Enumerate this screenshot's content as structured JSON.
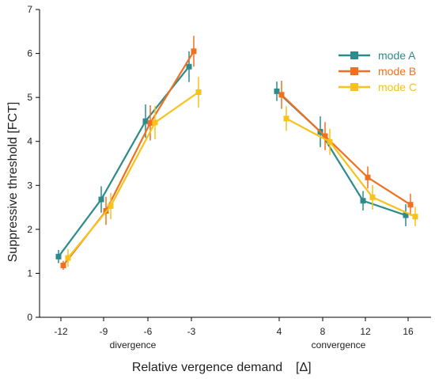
{
  "chart_data": {
    "type": "line",
    "ylabel": "Suppressive threshold [FCT]",
    "xlabel": "Relative vergence demand",
    "xlabel_unit": "[Δ]",
    "ylim": [
      0,
      7
    ],
    "yticks": [
      0,
      1,
      2,
      3,
      4,
      5,
      6,
      7
    ],
    "groups": [
      {
        "name": "divergence",
        "categories": [
          "-12",
          "-9",
          "-6",
          "-3"
        ]
      },
      {
        "name": "convergence",
        "categories": [
          "4",
          "8",
          "12",
          "16"
        ]
      }
    ],
    "legend_position": "top-right",
    "series": [
      {
        "name": "mode A",
        "color": "#2e8b8b",
        "values": [
          1.38,
          2.68,
          4.46,
          5.7,
          5.14,
          4.22,
          2.65,
          2.32
        ],
        "errors": [
          0.15,
          0.3,
          0.38,
          0.35,
          0.22,
          0.35,
          0.22,
          0.25
        ]
      },
      {
        "name": "mode B",
        "color": "#f07020",
        "values": [
          1.18,
          2.42,
          4.42,
          6.05,
          5.06,
          4.12,
          3.18,
          2.56
        ],
        "errors": [
          0.1,
          0.32,
          0.4,
          0.35,
          0.32,
          0.32,
          0.25,
          0.25
        ]
      },
      {
        "name": "mode C",
        "color": "#f7c21a",
        "values": [
          1.35,
          2.53,
          4.43,
          5.12,
          4.52,
          3.99,
          2.73,
          2.29
        ],
        "errors": [
          0.2,
          0.3,
          0.38,
          0.35,
          0.28,
          0.3,
          0.28,
          0.22
        ]
      }
    ]
  }
}
